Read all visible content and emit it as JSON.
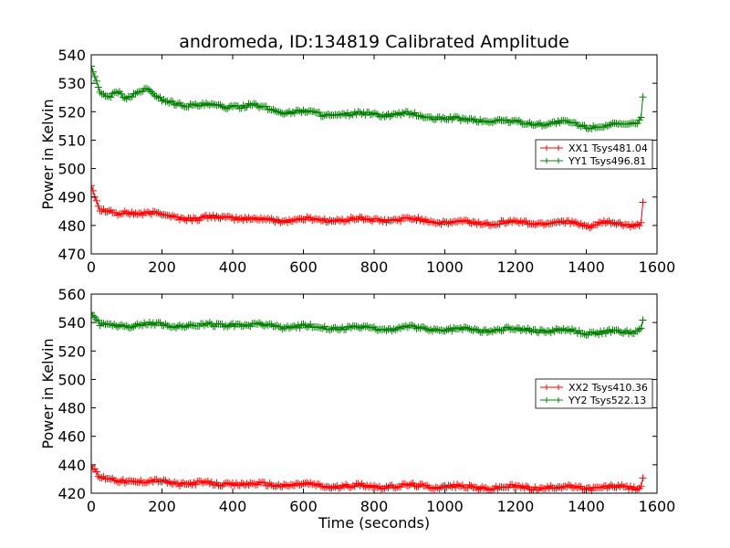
{
  "title": "andromeda, ID:134819 Calibrated Amplitude",
  "xlabel": "Time (seconds)",
  "chart_data": [
    {
      "type": "line",
      "title": "andromeda, ID:134819 Calibrated Amplitude",
      "xlabel": "",
      "ylabel": "Power in Kelvin",
      "xlim": [
        0,
        1600
      ],
      "ylim": [
        470,
        540
      ],
      "xticks": [
        0,
        200,
        400,
        600,
        800,
        1000,
        1200,
        1400,
        1600
      ],
      "yticks": [
        470,
        480,
        490,
        500,
        510,
        520,
        530,
        540
      ],
      "legend_position": "center-right",
      "markers": "plus",
      "x": [
        0,
        25,
        50,
        75,
        100,
        150,
        200,
        250,
        300,
        350,
        400,
        450,
        500,
        550,
        600,
        650,
        700,
        750,
        800,
        850,
        900,
        950,
        1000,
        1050,
        1100,
        1150,
        1200,
        1250,
        1300,
        1350,
        1400,
        1450,
        1500,
        1540,
        1555,
        1562
      ],
      "series": [
        {
          "name": "XX1 Tsys481.04",
          "color": "#ff0000",
          "values": [
            494,
            485,
            485,
            484,
            485,
            484,
            484,
            483,
            482,
            483,
            483,
            482,
            482,
            482,
            482,
            482,
            482,
            482,
            482,
            482,
            482,
            482,
            481,
            481,
            481,
            481,
            481,
            481,
            481,
            481,
            480,
            481,
            480,
            480,
            481,
            491
          ]
        },
        {
          "name": "YY1 Tsys496.81",
          "color": "#008000",
          "values": [
            536,
            526,
            525,
            527,
            525,
            528,
            524,
            523,
            522,
            522,
            522,
            522,
            521,
            520,
            520,
            519,
            519,
            519,
            519,
            519,
            519,
            518,
            518,
            517,
            517,
            517,
            516,
            516,
            516,
            516,
            515,
            515,
            515,
            516,
            518,
            528
          ]
        }
      ]
    },
    {
      "type": "line",
      "title": "",
      "xlabel": "Time (seconds)",
      "ylabel": "Power in Kelvin",
      "xlim": [
        0,
        1600
      ],
      "ylim": [
        420,
        560
      ],
      "xticks": [
        0,
        200,
        400,
        600,
        800,
        1000,
        1200,
        1400,
        1600
      ],
      "yticks": [
        420,
        440,
        460,
        480,
        500,
        520,
        540,
        560
      ],
      "legend_position": "center-right",
      "markers": "plus",
      "x": [
        0,
        25,
        50,
        75,
        100,
        150,
        200,
        250,
        300,
        350,
        400,
        450,
        500,
        550,
        600,
        650,
        700,
        750,
        800,
        850,
        900,
        950,
        1000,
        1050,
        1100,
        1150,
        1200,
        1250,
        1300,
        1350,
        1400,
        1450,
        1500,
        1540,
        1555,
        1562
      ],
      "series": [
        {
          "name": "XX2 Tsys410.36",
          "color": "#ff0000",
          "values": [
            439,
            430,
            430,
            429,
            429,
            428,
            428,
            427,
            427,
            426,
            427,
            426,
            426,
            426,
            426,
            425,
            425,
            425,
            425,
            425,
            425,
            425,
            425,
            424,
            424,
            424,
            424,
            424,
            424,
            424,
            424,
            424,
            424,
            424,
            425,
            433
          ]
        },
        {
          "name": "YY2 Tsys522.13",
          "color": "#008000",
          "values": [
            547,
            538,
            538,
            538,
            538,
            539,
            538,
            538,
            538,
            538,
            539,
            538,
            538,
            537,
            537,
            537,
            536,
            536,
            536,
            536,
            536,
            536,
            535,
            535,
            535,
            535,
            535,
            535,
            534,
            534,
            533,
            533,
            533,
            534,
            536,
            544
          ]
        }
      ]
    }
  ]
}
